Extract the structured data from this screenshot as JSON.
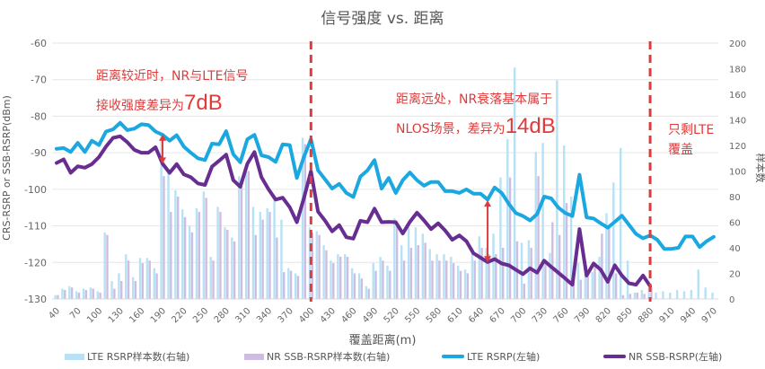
{
  "chart_data": {
    "type": "bar+line",
    "title": "信号强度 vs. 距离",
    "xlabel": "覆盖距离(m)",
    "ylabel_left": "CRS-RSRP or SSB-RSRP(dBm)",
    "ylabel_right": "样本数",
    "x_start": 40,
    "x_step": 10,
    "x_end": 970,
    "x_tick_labels": [
      "40",
      "70",
      "100",
      "130",
      "160",
      "190",
      "220",
      "250",
      "280",
      "310",
      "340",
      "370",
      "400",
      "430",
      "460",
      "490",
      "520",
      "550",
      "580",
      "610",
      "640",
      "670",
      "700",
      "730",
      "760",
      "790",
      "820",
      "850",
      "880",
      "910",
      "940",
      "970"
    ],
    "ylim_left": [
      -130,
      -60
    ],
    "yticks_left": [
      "-60",
      "-70",
      "-80",
      "-90",
      "-100",
      "-110",
      "-120",
      "-130"
    ],
    "ylim_right": [
      0,
      200
    ],
    "yticks_right": [
      "200",
      "180",
      "160",
      "140",
      "120",
      "100",
      "80",
      "60",
      "40",
      "20",
      "0"
    ],
    "grid": true,
    "legend_position": "bottom",
    "series": [
      {
        "name": "LTE RSRP样本数(右轴)",
        "kind": "bar",
        "axis": "right",
        "color": "#b7e2f5",
        "values": [
          3,
          8,
          10,
          6,
          8,
          9,
          6,
          52,
          14,
          20,
          35,
          17,
          32,
          32,
          24,
          126,
          102,
          85,
          70,
          57,
          71,
          84,
          33,
          72,
          56,
          48,
          96,
          102,
          72,
          68,
          71,
          79,
          62,
          24,
          20,
          126,
          56,
          53,
          42,
          30,
          35,
          35,
          24,
          20,
          10,
          28,
          33,
          26,
          63,
          42,
          56,
          56,
          51,
          39,
          35,
          35,
          33,
          26,
          23,
          37,
          49,
          40,
          51,
          95,
          125,
          181,
          44,
          46,
          115,
          122,
          36,
          171,
          120,
          80,
          28,
          20,
          21,
          33,
          67,
          91,
          118,
          30,
          5,
          7,
          9,
          5,
          6,
          5,
          7,
          6,
          7,
          23,
          9,
          5
        ]
      },
      {
        "name": "NR SSB-RSRP样本数(右轴)",
        "kind": "bar",
        "axis": "right",
        "color": "#cdbde0",
        "values": [
          3,
          7,
          9,
          5,
          7,
          8,
          5,
          50,
          8,
          14,
          30,
          14,
          28,
          30,
          20,
          96,
          68,
          80,
          64,
          52,
          68,
          79,
          30,
          68,
          54,
          45,
          93,
          100,
          50,
          62,
          68,
          48,
          21,
          22,
          18,
          121,
          52,
          50,
          38,
          28,
          33,
          33,
          20,
          16,
          8,
          22,
          30,
          22,
          58,
          30,
          40,
          42,
          44,
          30,
          30,
          30,
          28,
          22,
          20,
          30,
          40,
          35,
          35,
          40,
          95,
          45,
          12,
          40,
          96,
          30,
          60,
          50,
          75,
          20,
          15,
          18,
          28,
          51,
          56,
          20,
          3,
          4,
          5,
          4,
          9
        ]
      },
      {
        "name": "LTE RSRP(左轴)",
        "kind": "line",
        "axis": "left",
        "color": "#1ba8e0",
        "values": [
          -88.9,
          -88.7,
          -89.8,
          -87.3,
          -89.8,
          -86.7,
          -87.9,
          -84.2,
          -83.6,
          -81.8,
          -83.8,
          -83.4,
          -82.2,
          -82.4,
          -84.2,
          -85.1,
          -86.7,
          -85.2,
          -88.3,
          -90,
          -91.5,
          -92,
          -87.5,
          -87.7,
          -84.1,
          -90.4,
          -92.6,
          -86.3,
          -85.1,
          -90.7,
          -91.2,
          -92.5,
          -87.7,
          -87.9,
          -96.9,
          -91.2,
          -86.3,
          -94.8,
          -97.3,
          -99.8,
          -98.5,
          -101,
          -102.1,
          -96.5,
          -94.8,
          -92,
          -99.8,
          -96.9,
          -101,
          -97.5,
          -95.4,
          -97.5,
          -99,
          -98,
          -98,
          -100.5,
          -100.5,
          -101,
          -100,
          -101.2,
          -101.2,
          -102.8,
          -99.5,
          -101,
          -104,
          -106.5,
          -107.3,
          -108.5,
          -106.8,
          -102,
          -102.5,
          -105,
          -106.5,
          -107.3,
          -96,
          -107.7,
          -108,
          -109.3,
          -110.5,
          -108.9,
          -107.2,
          -109.7,
          -112.2,
          -113.4,
          -112.6,
          -113.8,
          -116.3,
          -116.3,
          -116,
          -112.9,
          -112.9,
          -115.8,
          -114.2,
          -113
        ]
      },
      {
        "name": "NR SSB-RSRP(左轴)",
        "kind": "line",
        "axis": "left",
        "color": "#672d91",
        "values": [
          -92.8,
          -91.8,
          -95.5,
          -93.7,
          -94.1,
          -93.1,
          -91.2,
          -88.3,
          -85.9,
          -85.5,
          -87.1,
          -89.2,
          -90,
          -90,
          -88.5,
          -93,
          -95.5,
          -93.1,
          -95.9,
          -96.7,
          -98.4,
          -98.8,
          -93.8,
          -92.2,
          -90.5,
          -97.5,
          -99.3,
          -93,
          -89.8,
          -96.7,
          -100,
          -102.8,
          -102.3,
          -104.9,
          -109,
          -102.5,
          -95.1,
          -106.1,
          -108.6,
          -111.5,
          -109.8,
          -113.1,
          -113.5,
          -108.6,
          -109,
          -105.3,
          -109,
          -108.9,
          -109,
          -112.1,
          -108.9,
          -106.4,
          -108.5,
          -110.9,
          -109.3,
          -111.3,
          -113.8,
          -112.6,
          -114.2,
          -117.5,
          -118.7,
          -119.9,
          -119.1,
          -120.3,
          -120.8,
          -122,
          -123.2,
          -121.6,
          -122.8,
          -119.5,
          -121.2,
          -122.8,
          -124.4,
          -126.1,
          -110.9,
          -123.6,
          -120.3,
          -122,
          -125.3,
          -120.8,
          -123.6,
          -125.7,
          -126.1,
          -123.6,
          -126.5
        ]
      }
    ],
    "reference_lines": [
      {
        "x": 400,
        "color": "#e03a3a",
        "style": "dashed"
      },
      {
        "x": 880,
        "color": "#e03a3a",
        "style": "dashed"
      }
    ],
    "arrows": [
      {
        "x": 190,
        "from": -85,
        "to": -93
      },
      {
        "x": 650,
        "from": -103,
        "to": -120
      }
    ],
    "annotations": {
      "near_line1": "距离较近时，NR与LTE信号",
      "near_line2": "接收强度差异为",
      "near_value": "7dB",
      "far_line1": "距离远处，NR衰落基本属于",
      "far_line2": "NLOS场景，差异为",
      "far_value": "14dB",
      "lte_only_line1": "只剩LTE",
      "lte_only_line2": "覆盖"
    }
  }
}
